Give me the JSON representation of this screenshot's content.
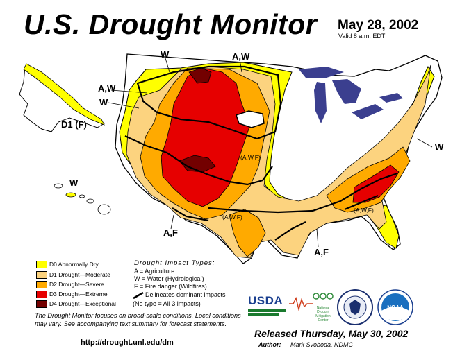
{
  "header": {
    "title": "U.S. Drought Monitor",
    "date": "May 28, 2002",
    "valid": "Valid 8 a.m. EDT"
  },
  "map_labels": {
    "w_northwest": "W",
    "aw_north": "A,W",
    "aw_washington": "A,W",
    "w_oregon": "W",
    "d1f_alaska": "D1 (F)",
    "w_hawaii": "W",
    "awf_colorado": "(A,W,F)",
    "awf_texas": "(A,W,F)",
    "awf_southeast": "(A,W,F)",
    "w_east": "W",
    "af_southwest": "A,F",
    "af_gulf": "A,F"
  },
  "legend": {
    "items": [
      {
        "label": "D0 Abnormally Dry",
        "color": "#ffff00"
      },
      {
        "label": "D1 Drought—Moderate",
        "color": "#fcd37f"
      },
      {
        "label": "D2 Drought—Severe",
        "color": "#ffaa00"
      },
      {
        "label": "D3 Drought—Extreme",
        "color": "#e60000"
      },
      {
        "label": "D4 Drought—Exceptional",
        "color": "#730000"
      }
    ]
  },
  "impact_types": {
    "title": "Drought Impact Types:",
    "lines": [
      "A = Agriculture",
      "W = Water (Hydrological)",
      "F = Fire danger (Wildfires)"
    ],
    "delineates": "Delineates dominant impacts",
    "no_type": "(No type = All 3 impacts)"
  },
  "note": "The Drought Monitor focuses on broad-scale conditions. Local conditions may vary. See accompanying text summary for forecast statements.",
  "url": "http://drought.unl.edu/dm",
  "released": "Released Thursday, May 30, 2002",
  "author_label": "Author:",
  "author_name": "Mark Svoboda, NDMC",
  "logos": {
    "usda": "USDA",
    "ndmc_line1": "National",
    "ndmc_line2": "Drought",
    "ndmc_line3": "Mitigation",
    "ndmc_line4": "Center",
    "noaa": "NOAA"
  },
  "colors": {
    "d0": "#ffff00",
    "d1": "#fcd37f",
    "d2": "#ffaa00",
    "d3": "#e60000",
    "d4": "#730000",
    "lakes": "#3b3f8f"
  }
}
